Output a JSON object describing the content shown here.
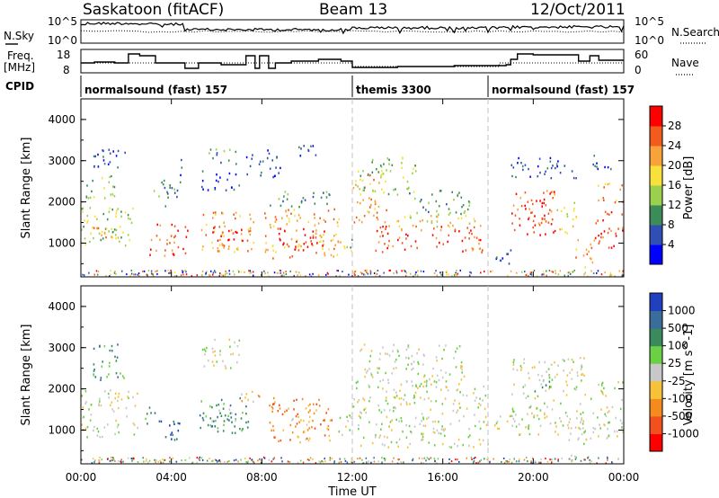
{
  "header": {
    "station": "Saskatoon (fitACF)",
    "beam": "Beam 13",
    "date": "12/Oct/2011"
  },
  "panel_labels": {
    "nsky": "N.Sky",
    "nsearch": "N.Search",
    "freq_line1": "Freq.",
    "freq_line2": "[MHz]",
    "nave": "Nave",
    "cpid": "CPID"
  },
  "noise_axis": {
    "left_ticks": [
      "10^5",
      "10^0"
    ],
    "right_ticks": [
      "10^5",
      "10^0"
    ]
  },
  "freq_axis": {
    "left_ticks": [
      "18",
      "8"
    ],
    "right_ticks": [
      "60",
      "0"
    ]
  },
  "cpid_segments": [
    {
      "label": "normalsound (fast) 157",
      "start_h": 0,
      "end_h": 12
    },
    {
      "label": "themis 3300",
      "start_h": 12,
      "end_h": 18
    },
    {
      "label": "normalsound (fast) 157",
      "start_h": 18,
      "end_h": 24
    }
  ],
  "time_axis": {
    "label": "Time UT",
    "ticks": [
      "00:00",
      "04:00",
      "08:00",
      "12:00",
      "16:00",
      "20:00",
      "00:00"
    ]
  },
  "chart_data": [
    {
      "type": "heatmap",
      "title": "",
      "xlabel": "Time UT",
      "ylabel": "Slant Range [km]",
      "xlim": [
        0,
        24
      ],
      "ylim": [
        180,
        4500
      ],
      "yticks": [
        "1000",
        "2000",
        "3000",
        "4000"
      ],
      "colorbar": {
        "label": "Power [dB]",
        "ticks": [
          "4",
          "8",
          "12",
          "16",
          "20",
          "24",
          "28"
        ],
        "colors": [
          "#0000ff",
          "#2f4fb5",
          "#3c8c5a",
          "#9ad04d",
          "#f7e13a",
          "#f8a23a",
          "#f25a1e",
          "#ff0000"
        ]
      },
      "blobs": [
        {
          "t0": 0.0,
          "t1": 2.3,
          "r0": 850,
          "r1": 1900,
          "level": 3
        },
        {
          "t0": 0.3,
          "t1": 1.8,
          "r0": 1150,
          "r1": 1550,
          "level": 5
        },
        {
          "t0": 0.2,
          "t1": 1.6,
          "r0": 2100,
          "r1": 2700,
          "level": 3
        },
        {
          "t0": 0.2,
          "t1": 2.0,
          "r0": 2800,
          "r1": 3300,
          "level": 1
        },
        {
          "t0": 3.0,
          "t1": 4.7,
          "r0": 700,
          "r1": 1500,
          "level": 6
        },
        {
          "t0": 3.2,
          "t1": 4.3,
          "r0": 1900,
          "r1": 2600,
          "level": 2
        },
        {
          "t0": 4.3,
          "t1": 4.6,
          "r0": 2500,
          "r1": 3100,
          "level": 1
        },
        {
          "t0": 5.2,
          "t1": 7.7,
          "r0": 800,
          "r1": 1800,
          "level": 5
        },
        {
          "t0": 5.8,
          "t1": 7.2,
          "r0": 1000,
          "r1": 1450,
          "level": 7
        },
        {
          "t0": 5.3,
          "t1": 7.0,
          "r0": 2300,
          "r1": 2800,
          "level": 1
        },
        {
          "t0": 5.6,
          "t1": 6.9,
          "r0": 2900,
          "r1": 3300,
          "level": 2
        },
        {
          "t0": 7.3,
          "t1": 8.8,
          "r0": 2600,
          "r1": 3300,
          "level": 1
        },
        {
          "t0": 8.1,
          "t1": 11.5,
          "r0": 650,
          "r1": 1850,
          "level": 5
        },
        {
          "t0": 8.7,
          "t1": 10.8,
          "r0": 850,
          "r1": 1400,
          "level": 7
        },
        {
          "t0": 8.3,
          "t1": 11.0,
          "r0": 1900,
          "r1": 2300,
          "level": 2
        },
        {
          "t0": 9.5,
          "t1": 10.5,
          "r0": 3050,
          "r1": 3450,
          "level": 1
        },
        {
          "t0": 11.5,
          "t1": 12.0,
          "r0": 700,
          "r1": 1200,
          "level": 3
        },
        {
          "t0": 12.0,
          "t1": 13.5,
          "r0": 1500,
          "r1": 2700,
          "level": 5
        },
        {
          "t0": 12.2,
          "t1": 14.8,
          "r0": 2200,
          "r1": 3100,
          "level": 3
        },
        {
          "t0": 13.0,
          "t1": 17.8,
          "r0": 800,
          "r1": 1450,
          "level": 6
        },
        {
          "t0": 13.5,
          "t1": 17.5,
          "r0": 1400,
          "r1": 1700,
          "level": 4
        },
        {
          "t0": 14.5,
          "t1": 17.2,
          "r0": 1700,
          "r1": 2300,
          "level": 2
        },
        {
          "t0": 18.0,
          "t1": 19.0,
          "r0": 500,
          "r1": 900,
          "level": 1
        },
        {
          "t0": 19.0,
          "t1": 21.0,
          "r0": 1200,
          "r1": 2300,
          "level": 6
        },
        {
          "t0": 19.5,
          "t1": 20.5,
          "r0": 1600,
          "r1": 2200,
          "level": 7
        },
        {
          "t0": 21.0,
          "t1": 21.9,
          "r0": 1200,
          "r1": 2000,
          "level": 4
        },
        {
          "t0": 19.0,
          "t1": 22.0,
          "r0": 2600,
          "r1": 3100,
          "level": 1
        },
        {
          "t0": 21.8,
          "t1": 22.6,
          "r0": 380,
          "r1": 1100,
          "level": 5
        },
        {
          "t0": 22.6,
          "t1": 24.0,
          "r0": 900,
          "r1": 1800,
          "level": 6
        },
        {
          "t0": 22.8,
          "t1": 24.0,
          "r0": 2000,
          "r1": 2500,
          "level": 5
        },
        {
          "t0": 22.5,
          "t1": 23.5,
          "r0": 2800,
          "r1": 3200,
          "level": 1
        }
      ]
    },
    {
      "type": "heatmap",
      "title": "",
      "xlabel": "Time UT",
      "ylabel": "Slant Range [km]",
      "xlim": [
        0,
        24
      ],
      "ylim": [
        180,
        4500
      ],
      "yticks": [
        "1000",
        "2000",
        "3000",
        "4000"
      ],
      "colorbar": {
        "label": "Velocity [m s^-1]",
        "ticks": [
          "1000",
          "500",
          "100",
          "25",
          "-25",
          "-100",
          "-500",
          "-1000"
        ],
        "colors": [
          "#2040c0",
          "#3a6e9a",
          "#3b8a5e",
          "#6ad046",
          "#c8c8c8",
          "#f7c23a",
          "#f58a1e",
          "#f2511e",
          "#ff0000"
        ]
      },
      "blobs": [
        {
          "t0": 0.0,
          "t1": 2.5,
          "r0": 850,
          "r1": 2000,
          "level": 4
        },
        {
          "t0": 0.5,
          "t1": 2.0,
          "r0": 2200,
          "r1": 3100,
          "level": 2
        },
        {
          "t0": 2.8,
          "t1": 3.3,
          "r0": 1050,
          "r1": 1600,
          "level": 2
        },
        {
          "t0": 3.3,
          "t1": 4.4,
          "r0": 700,
          "r1": 1300,
          "level": 1
        },
        {
          "t0": 5.2,
          "t1": 7.4,
          "r0": 950,
          "r1": 1800,
          "level": 2
        },
        {
          "t0": 5.5,
          "t1": 6.9,
          "r0": 1100,
          "r1": 1650,
          "level": 3
        },
        {
          "t0": 5.3,
          "t1": 7.0,
          "r0": 2500,
          "r1": 3300,
          "level": 4
        },
        {
          "t0": 7.0,
          "t1": 8.0,
          "r0": 1600,
          "r1": 2000,
          "level": 5
        },
        {
          "t0": 8.3,
          "t1": 11.2,
          "r0": 700,
          "r1": 1800,
          "level": 6
        },
        {
          "t0": 9.2,
          "t1": 10.3,
          "r0": 800,
          "r1": 1300,
          "level": 5
        },
        {
          "t0": 11.2,
          "t1": 12.0,
          "r0": 850,
          "r1": 1400,
          "level": 4
        },
        {
          "t0": 12.0,
          "t1": 18.0,
          "r0": 600,
          "r1": 2200,
          "level": 4
        },
        {
          "t0": 12.3,
          "t1": 17.0,
          "r0": 2200,
          "r1": 3100,
          "level": 4
        },
        {
          "t0": 18.0,
          "t1": 19.0,
          "r0": 1000,
          "r1": 1400,
          "level": 4
        },
        {
          "t0": 19.0,
          "t1": 22.3,
          "r0": 900,
          "r1": 2800,
          "level": 4
        },
        {
          "t0": 20.0,
          "t1": 20.8,
          "r0": 1800,
          "r1": 2200,
          "level": 2
        },
        {
          "t0": 21.5,
          "t1": 22.5,
          "r0": 350,
          "r1": 1100,
          "level": 4
        },
        {
          "t0": 22.5,
          "t1": 24.0,
          "r0": 800,
          "r1": 2200,
          "level": 4
        }
      ]
    }
  ]
}
